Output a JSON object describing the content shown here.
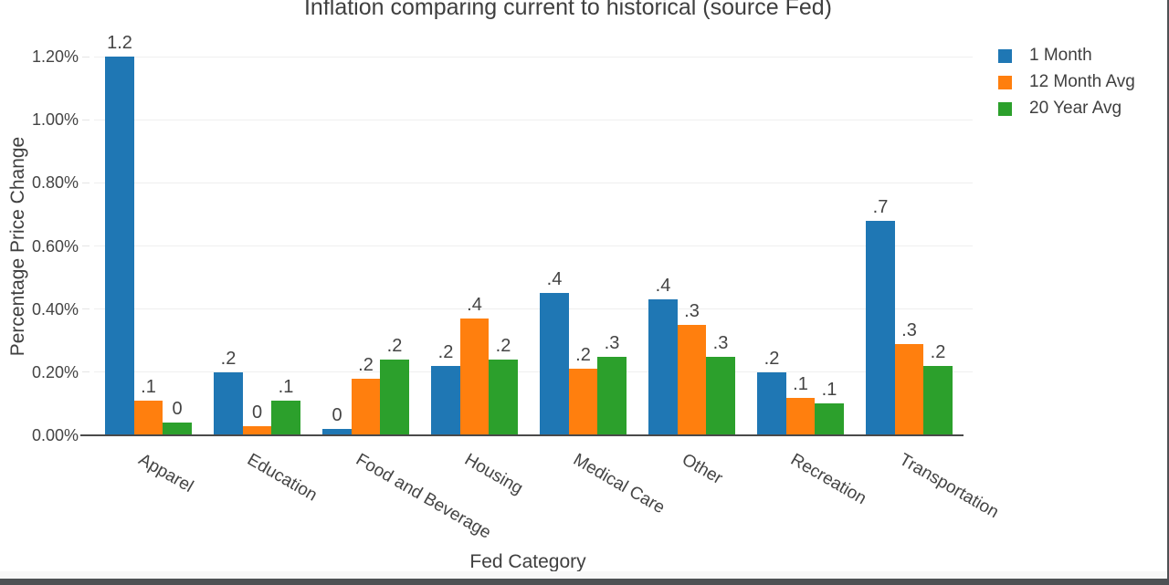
{
  "chart_data": {
    "type": "bar",
    "title": "Inflation comparing current to historical (source Fed)",
    "xlabel": "Fed Category",
    "ylabel": "Percentage Price Change",
    "categories": [
      "Apparel",
      "Education",
      "Food and Beverage",
      "Housing",
      "Medical Care",
      "Other",
      "Recreation",
      "Transportation"
    ],
    "series": [
      {
        "name": "1 Month",
        "color": "#1f77b4",
        "values": [
          1.2,
          0.2,
          0.02,
          0.22,
          0.45,
          0.43,
          0.2,
          0.68
        ],
        "labels": [
          "1.2",
          ".2",
          "0",
          ".2",
          ".4",
          ".4",
          ".2",
          ".7"
        ]
      },
      {
        "name": "12 Month Avg",
        "color": "#ff7f0e",
        "values": [
          0.11,
          0.03,
          0.18,
          0.37,
          0.21,
          0.35,
          0.12,
          0.29
        ],
        "labels": [
          ".1",
          "0",
          ".2",
          ".4",
          ".2",
          ".3",
          ".1",
          ".3"
        ]
      },
      {
        "name": "20 Year Avg",
        "color": "#2ca02c",
        "values": [
          0.04,
          0.11,
          0.24,
          0.24,
          0.25,
          0.25,
          0.1,
          0.22
        ],
        "labels": [
          "0",
          ".1",
          ".2",
          ".2",
          ".3",
          ".3",
          ".1",
          ".2"
        ]
      }
    ],
    "y_ticks": [
      "0.00%",
      "0.20%",
      "0.40%",
      "0.60%",
      "0.80%",
      "1.00%",
      "1.20%"
    ],
    "ylim": [
      0,
      1.2
    ],
    "grid": true,
    "legend_position": "top-right"
  },
  "colors": {
    "text": "#444444",
    "axis_line": "#4a4a4a",
    "gridline": "#efefef",
    "background": "#ffffff",
    "window_edge": "#4e5154"
  }
}
